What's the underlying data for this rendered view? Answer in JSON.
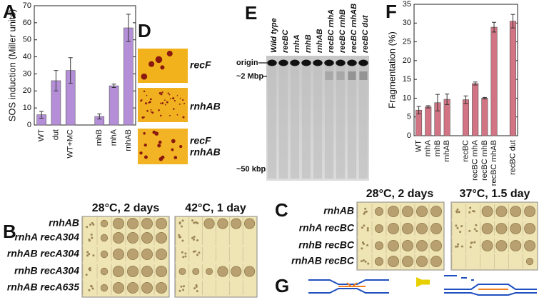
{
  "chart_data": [
    {
      "type": "bar",
      "panel": "A",
      "ylabel": "SOS induction (Miller units)",
      "categories": [
        "WT",
        "dut",
        "WT+MC",
        null,
        "rnhB",
        "rnhA",
        "rnhAB"
      ],
      "values": [
        6,
        26,
        32,
        null,
        5,
        23,
        57
      ],
      "errors": [
        2,
        6,
        7.5,
        null,
        1.5,
        1,
        8
      ],
      "color": "#b48fd8",
      "ylim": [
        0,
        70
      ],
      "yticks": [
        0,
        10,
        20,
        30,
        40,
        50,
        60,
        70
      ]
    },
    {
      "type": "bar",
      "panel": "F",
      "ylabel": "Fragmentation (%)",
      "categories": [
        "WT",
        "rnhA",
        "rnhB",
        "rnhAB",
        null,
        "recBC",
        "recBC rnhA",
        "recBC rnhB",
        "recBC rnhAB",
        null,
        "recBC dut"
      ],
      "values": [
        6.8,
        7.7,
        8.8,
        9.7,
        null,
        9.6,
        13.9,
        10,
        28.9,
        null,
        30.5
      ],
      "errors": [
        1,
        0.3,
        2.2,
        1.4,
        null,
        1,
        0.4,
        0.2,
        1.3,
        null,
        1.8
      ],
      "color": "#d27484",
      "ylim": [
        0,
        35
      ],
      "yticks": [
        0,
        5,
        10,
        15,
        20,
        25,
        30,
        35
      ]
    }
  ],
  "panel_d": {
    "letter": "D",
    "labels": [
      [
        "recF"
      ],
      [
        "rnhAB"
      ],
      [
        "recF",
        "rnhAB"
      ]
    ]
  },
  "panel_e": {
    "letter": "E",
    "lanes": [
      "Wild type",
      "recBC",
      "rnhA",
      "rnhB",
      "rnhAB",
      "recBC rnhA",
      "recBC rnhB",
      "recBC rnhAB",
      "recBC dut"
    ],
    "markers": [
      "origin",
      "~2 Mbp",
      "~50 kbp"
    ]
  },
  "panel_b": {
    "letter": "B",
    "conditions": [
      "28°C, 2 days",
      "42°C, 1 day"
    ],
    "rows": [
      "rnhAB",
      "rnhA recA304",
      "rnhAB recA304",
      "rnhB recA304",
      "rnhAB recA635"
    ]
  },
  "panel_c": {
    "letter": "C",
    "conditions": [
      "28°C, 2 days",
      "37°C, 1.5 day"
    ],
    "rows": [
      "rnhAB",
      "rnhA recBC",
      "rnhB recBC",
      "rnhAB recBC"
    ]
  },
  "panel_g": {
    "letter": "G"
  }
}
